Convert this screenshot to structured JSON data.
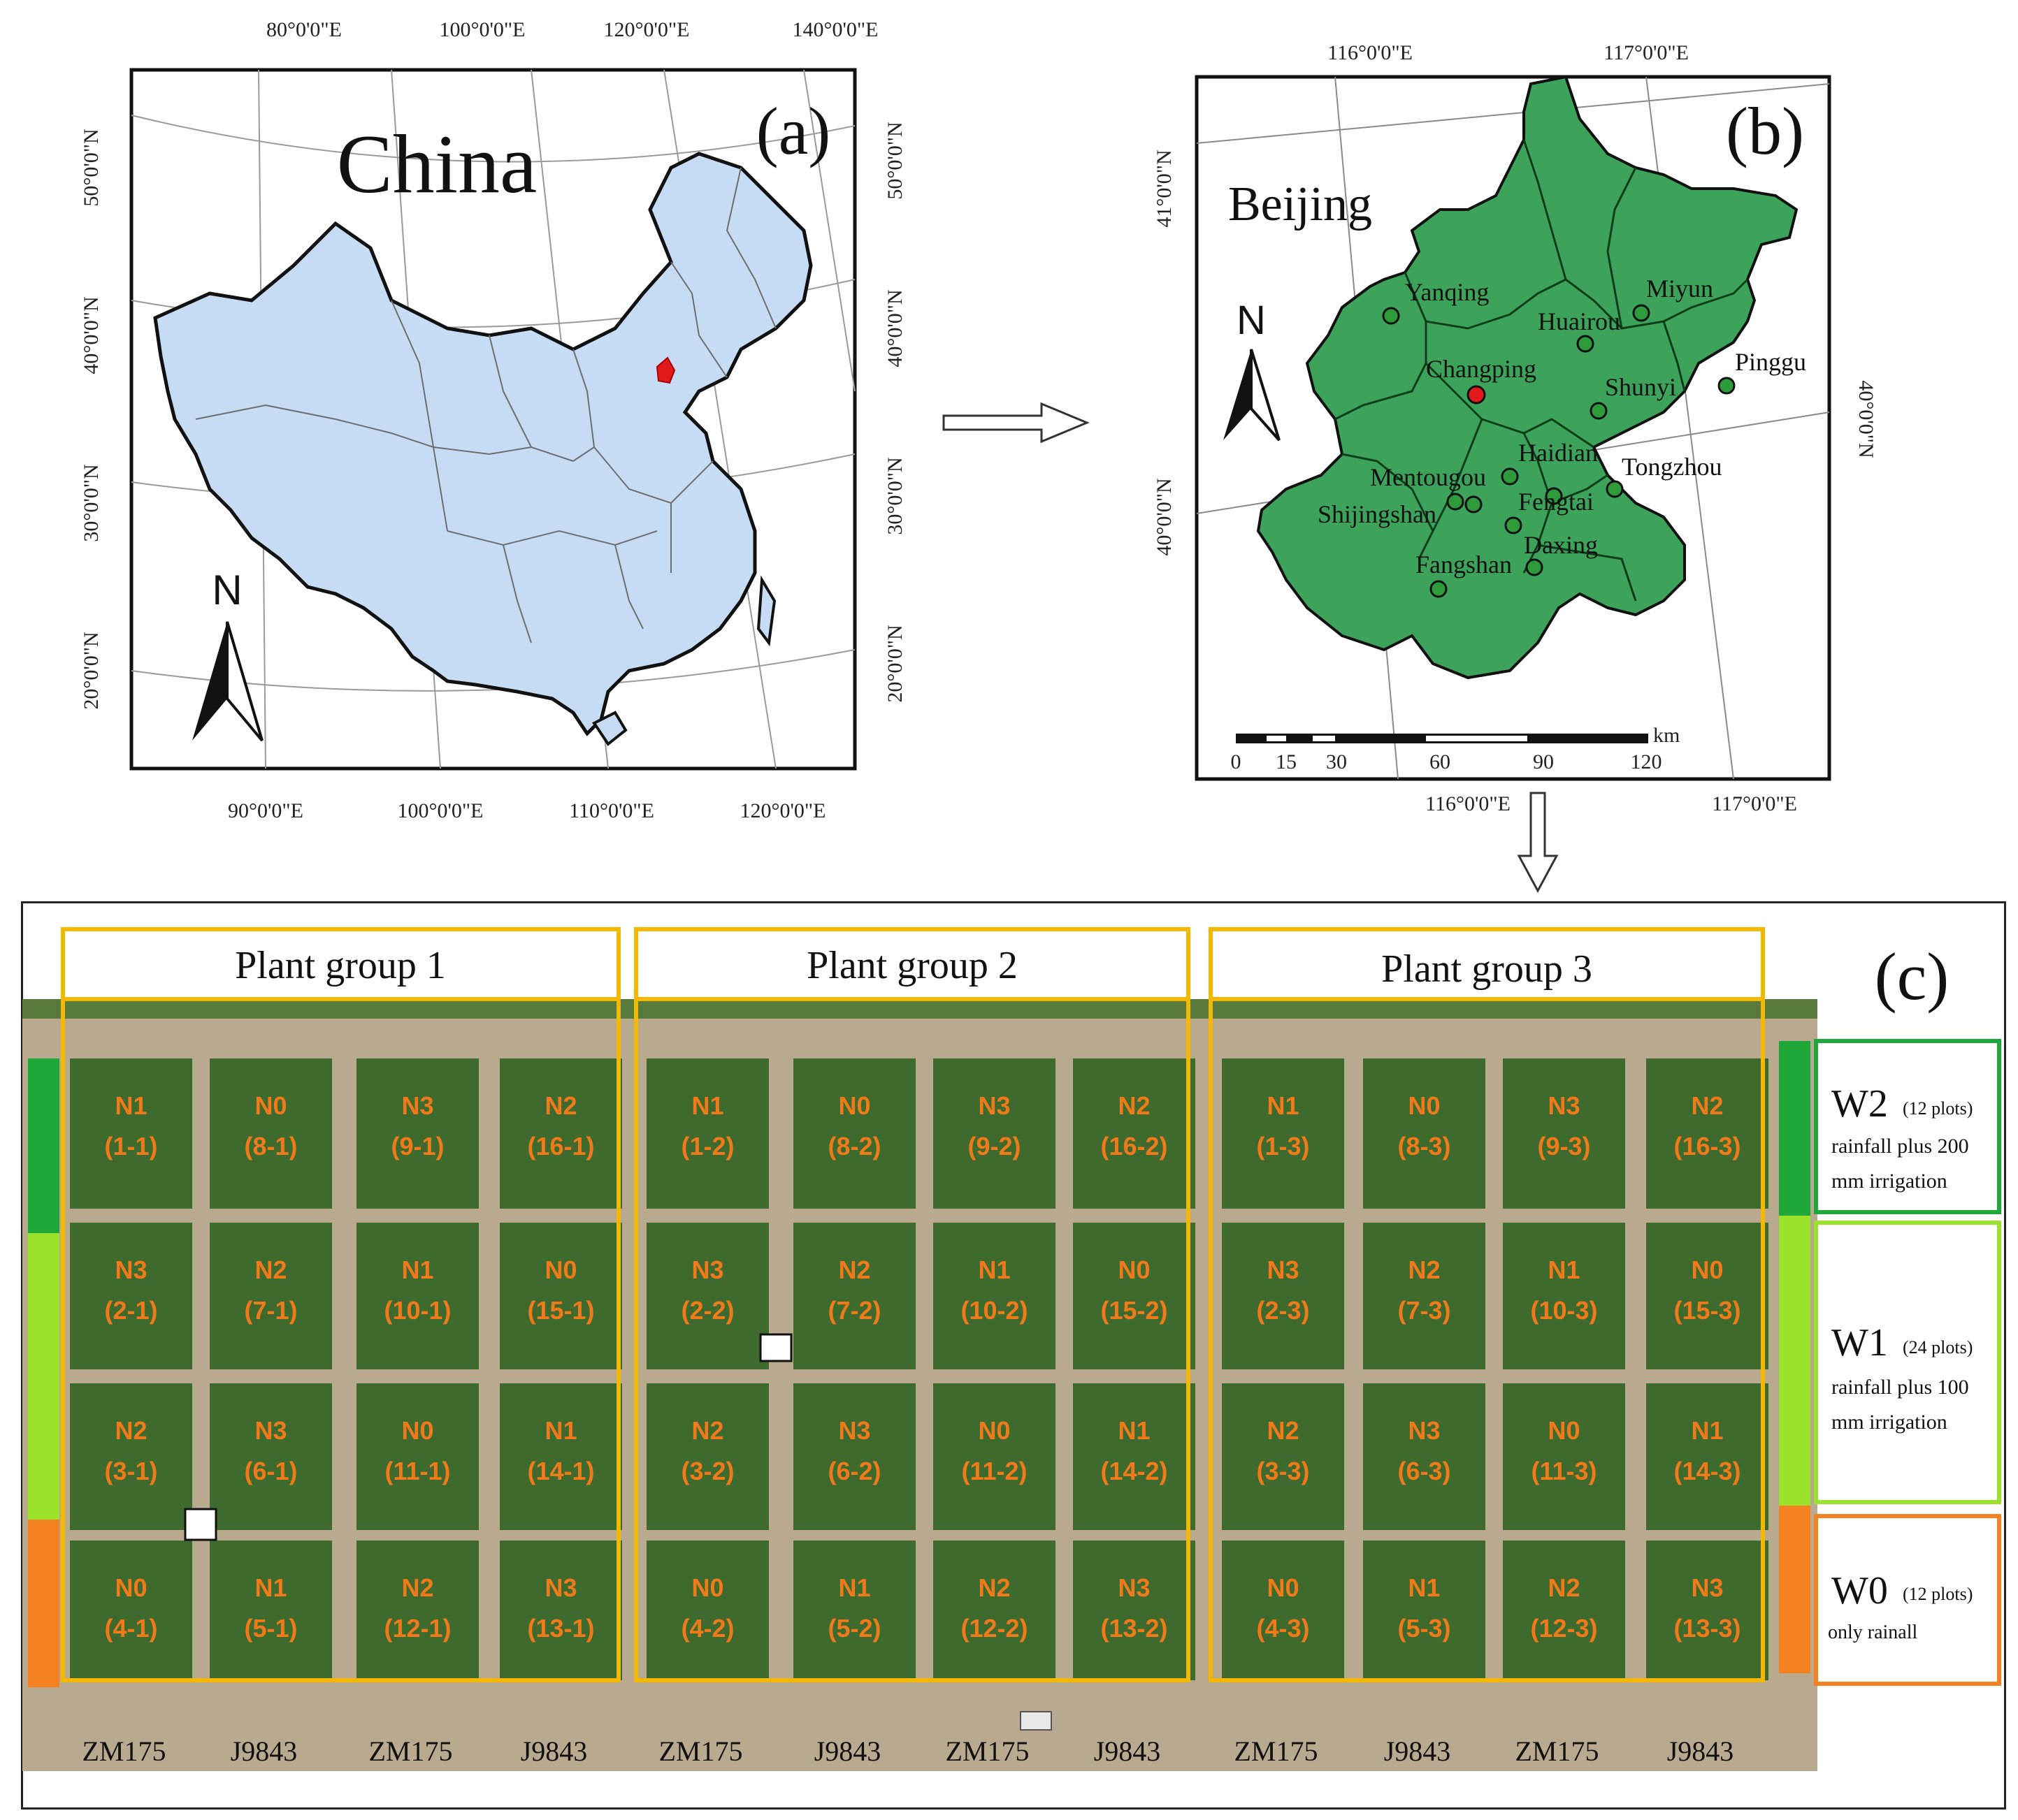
{
  "panel_a": {
    "letter": "(a)",
    "title": "China",
    "north": "N",
    "top_lon_labels": [
      "80°0'0\"E",
      "100°0'0\"E",
      "120°0'0\"E",
      "140°0'0\"E"
    ],
    "bottom_lon_labels": [
      "90°0'0\"E",
      "100°0'0\"E",
      "110°0'0\"E",
      "120°0'0\"E"
    ],
    "left_lat_labels": [
      "50°0'0\"N",
      "40°0'0\"N",
      "30°0'0\"N",
      "20°0'0\"N"
    ],
    "right_lat_labels": [
      "50°0'0\"N",
      "40°0'0\"N",
      "30°0'0\"N",
      "20°0'0\"N"
    ],
    "colors": {
      "land": "#c6dcf5",
      "highlight": "#e31a1c"
    }
  },
  "panel_b": {
    "letter": "(b)",
    "title": "Beijing",
    "north": "N",
    "top_lon_labels": [
      "116°0'0\"E",
      "117°0'0\"E"
    ],
    "bottom_lon_labels": [
      "116°0'0\"E",
      "117°0'0\"E"
    ],
    "left_lat_labels": [
      "41°0'0\"N",
      "40°0'0\"N"
    ],
    "right_lat_labels": [
      "40°0'0\"N"
    ],
    "scale_ticks": [
      "0",
      "15",
      "30",
      "60",
      "90",
      "120"
    ],
    "scale_unit": "km",
    "districts": [
      "Yanqing",
      "Huairou",
      "Miyun",
      "Changping",
      "Shunyi",
      "Pinggu",
      "Haidian",
      "Tongzhou",
      "Mentougou",
      "Fengtai",
      "Shijingshan",
      "Daxing",
      "Fangshan"
    ],
    "colors": {
      "land": "#3da35a",
      "site": "#2e9b3a",
      "experiment_site": "#e31a1c"
    }
  },
  "panel_c": {
    "letter": "(c)",
    "groups": [
      "Plant group 1",
      "Plant group 2",
      "Plant group 3"
    ],
    "varieties": [
      "ZM175",
      "J9843",
      "ZM175",
      "J9843",
      "ZM175",
      "J9843",
      "ZM175",
      "J9843",
      "ZM175",
      "J9843",
      "ZM175",
      "J9843"
    ],
    "plots": [
      [
        [
          "N1",
          "(1-1)"
        ],
        [
          "N0",
          "(8-1)"
        ],
        [
          "N3",
          "(9-1)"
        ],
        [
          "N2",
          "(16-1)"
        ],
        [
          "N1",
          "(1-2)"
        ],
        [
          "N0",
          "(8-2)"
        ],
        [
          "N3",
          "(9-2)"
        ],
        [
          "N2",
          "(16-2)"
        ],
        [
          "N1",
          "(1-3)"
        ],
        [
          "N0",
          "(8-3)"
        ],
        [
          "N3",
          "(9-3)"
        ],
        [
          "N2",
          "(16-3)"
        ]
      ],
      [
        [
          "N3",
          "(2-1)"
        ],
        [
          "N2",
          "(7-1)"
        ],
        [
          "N1",
          "(10-1)"
        ],
        [
          "N0",
          "(15-1)"
        ],
        [
          "N3",
          "(2-2)"
        ],
        [
          "N2",
          "(7-2)"
        ],
        [
          "N1",
          "(10-2)"
        ],
        [
          "N0",
          "(15-2)"
        ],
        [
          "N3",
          "(2-3)"
        ],
        [
          "N2",
          "(7-3)"
        ],
        [
          "N1",
          "(10-3)"
        ],
        [
          "N0",
          "(15-3)"
        ]
      ],
      [
        [
          "N2",
          "(3-1)"
        ],
        [
          "N3",
          "(6-1)"
        ],
        [
          "N0",
          "(11-1)"
        ],
        [
          "N1",
          "(14-1)"
        ],
        [
          "N2",
          "(3-2)"
        ],
        [
          "N3",
          "(6-2)"
        ],
        [
          "N0",
          "(11-2)"
        ],
        [
          "N1",
          "(14-2)"
        ],
        [
          "N2",
          "(3-3)"
        ],
        [
          "N3",
          "(6-3)"
        ],
        [
          "N0",
          "(11-3)"
        ],
        [
          "N1",
          "(14-3)"
        ]
      ],
      [
        [
          "N0",
          "(4-1)"
        ],
        [
          "N1",
          "(5-1)"
        ],
        [
          "N2",
          "(12-1)"
        ],
        [
          "N3",
          "(13-1)"
        ],
        [
          "N0",
          "(4-2)"
        ],
        [
          "N1",
          "(5-2)"
        ],
        [
          "N2",
          "(12-2)"
        ],
        [
          "N3",
          "(13-2)"
        ],
        [
          "N0",
          "(4-3)"
        ],
        [
          "N1",
          "(5-3)"
        ],
        [
          "N2",
          "(12-3)"
        ],
        [
          "N3",
          "(13-3)"
        ]
      ]
    ],
    "treatments": [
      {
        "code": "W2",
        "count": "(12 plots)",
        "line1": "rainfall plus 200",
        "line2": "mm irrigation",
        "color": "#1ea83a"
      },
      {
        "code": "W1",
        "count": "(24 plots)",
        "line1": "rainfall plus 100",
        "line2": "mm irrigation",
        "color": "#9be22a"
      },
      {
        "code": "W0",
        "count": "(12 plots)",
        "line1": "only rainall",
        "line2": "",
        "color": "#f58220"
      }
    ],
    "colors": {
      "group_frame": "#f5b800",
      "plot_label": "#f07a1a",
      "soil": "#b9a98e",
      "crop": "#3f6a2e"
    }
  }
}
